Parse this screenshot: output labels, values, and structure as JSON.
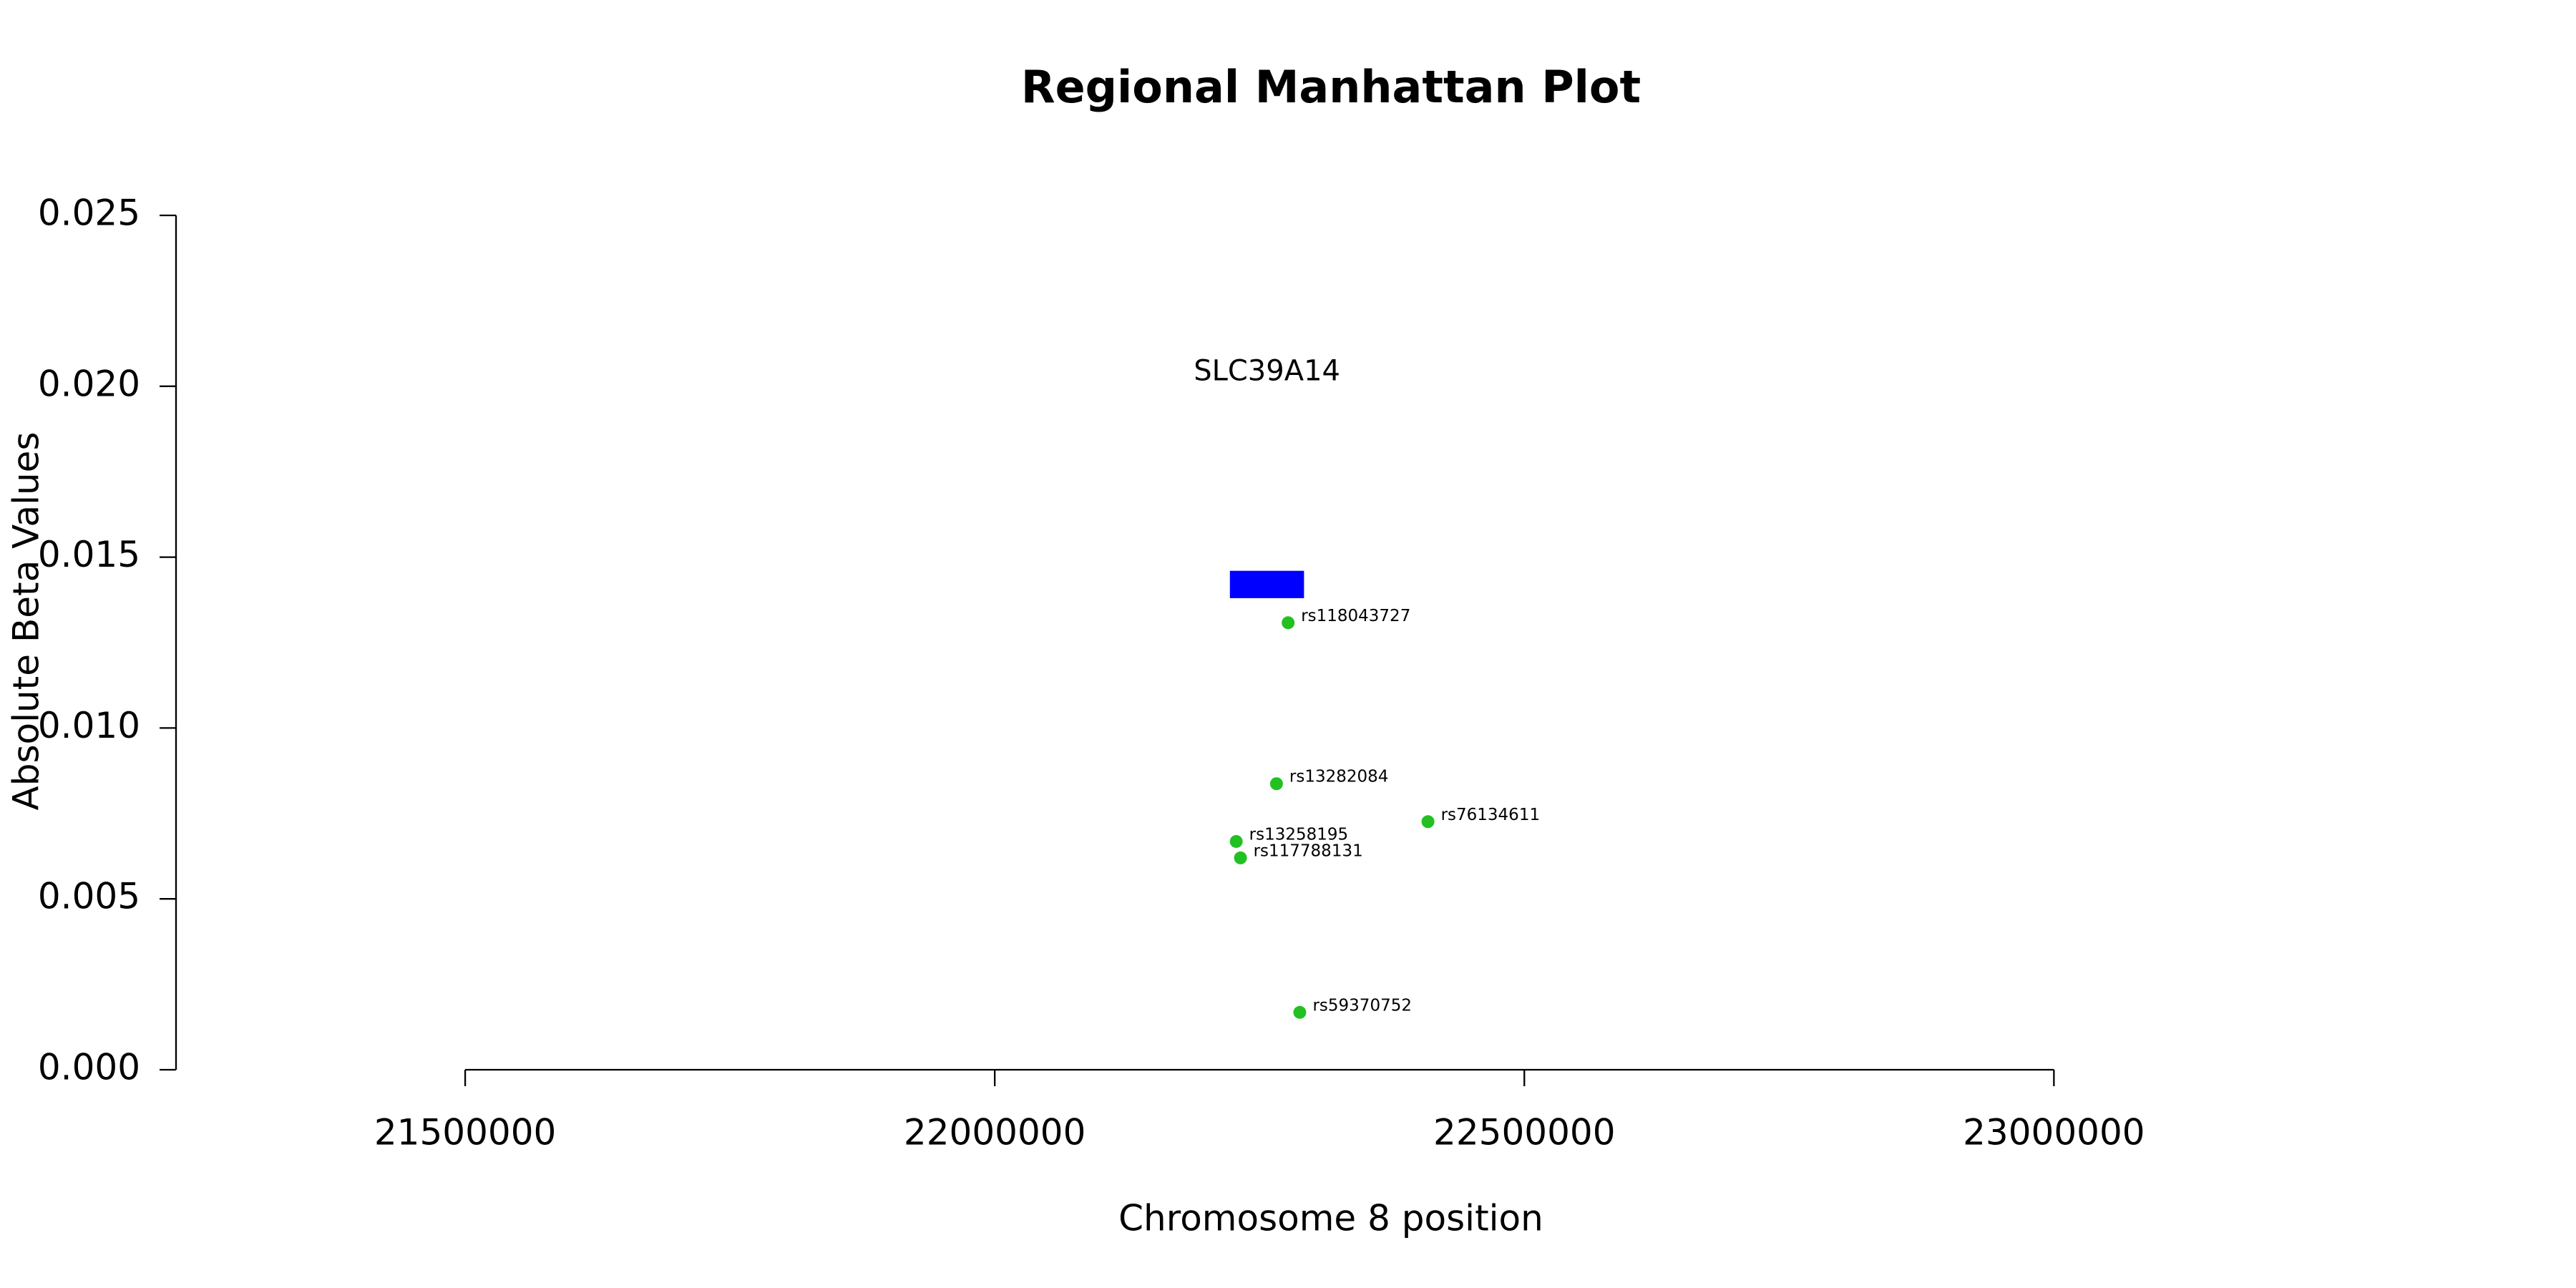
{
  "chart_data": {
    "type": "scatter",
    "title": "Regional Manhattan Plot",
    "x_label": "Chromosome 8 position",
    "y_label": "Absolute Beta Values",
    "xlim": [
      21227000,
      23372000
    ],
    "ylim": [
      0,
      0.025
    ],
    "xticks": [
      21500000,
      22000000,
      22500000,
      23000000
    ],
    "yticks": [
      {
        "value": 0,
        "label": "0.000"
      },
      {
        "value": 0.005,
        "label": "0.005"
      },
      {
        "value": 0.01,
        "label": "0.010"
      },
      {
        "value": 0.015,
        "label": "0.015"
      },
      {
        "value": 0.02,
        "label": "0.020"
      },
      {
        "value": 0.025,
        "label": "0.025"
      }
    ],
    "color": "#22c022",
    "point_labels": [
      "rs118043727",
      "rs13282084",
      "rs76134611",
      "rs13258195",
      "rs117788131",
      "rs59370752"
    ],
    "x": [
      22277000,
      22266000,
      22409000,
      22228000,
      22232000,
      22288000
    ],
    "values": [
      0.01308,
      0.00837,
      0.00726,
      0.00668,
      0.0062,
      0.00168
    ],
    "genes": [
      {
        "label": "SLC39A14",
        "start": 22222000,
        "end": 22292000,
        "y0": 0.0138,
        "y1": 0.0146,
        "label_y": 0.0204,
        "color": "#0000ff"
      }
    ]
  }
}
